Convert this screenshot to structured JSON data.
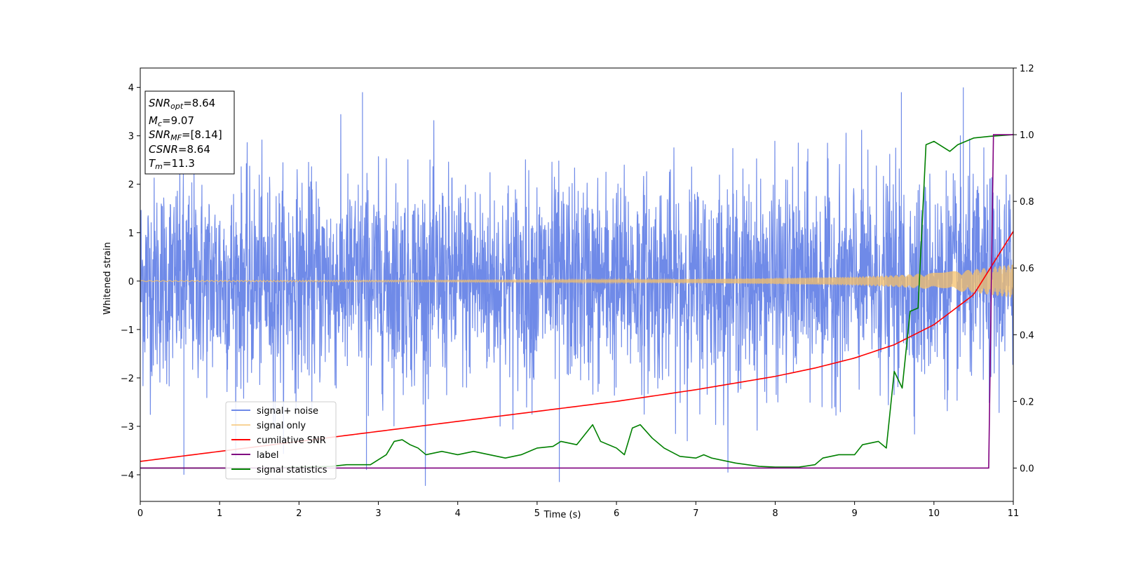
{
  "chart_data": {
    "type": "line",
    "xlabel": "Time (s)",
    "ylabel": "Whitened strain",
    "xlim": [
      0,
      11
    ],
    "ylim_left": [
      -4.55,
      4.4
    ],
    "ylim_right": [
      -0.1,
      1.2
    ],
    "x_ticks": [
      "0",
      "1",
      "2",
      "3",
      "4",
      "5",
      "6",
      "7",
      "8",
      "9",
      "10",
      "11"
    ],
    "y_left_ticks": [
      "−4",
      "−3",
      "−2",
      "−1",
      "0",
      "1",
      "2",
      "3",
      "4"
    ],
    "y_right_ticks": [
      "0.0",
      "0.2",
      "0.4",
      "0.6",
      "0.8",
      "1.0",
      "1.2"
    ],
    "legend_position": "lower-left",
    "annotation": {
      "lines": [
        {
          "base": "SNR",
          "sub": "opt",
          "rest": "=8.64"
        },
        {
          "base": "M",
          "sub": "c",
          "rest": "=9.07"
        },
        {
          "base": "SNR",
          "sub": "MF",
          "rest": "=[8.14]"
        },
        {
          "base": "CSNR",
          "sub": "",
          "rest": "=8.64"
        },
        {
          "base": "T",
          "sub": "m",
          "rest": "=11.3"
        }
      ]
    },
    "series": [
      {
        "name": "signal+ noise",
        "axis": "left",
        "color": "#6f8ae8",
        "description_values": "white noise, approx. +/-2.3 band with peaks to about +/-4, t from 0 to 11 s",
        "amplitude_envelope": {
          "x": [
            0,
            11
          ],
          "y": [
            2.3,
            2.3
          ]
        },
        "extremes": [
          [
            0.55,
            -4.0
          ],
          [
            1.7,
            -3.0
          ],
          [
            2.85,
            -3.9
          ],
          [
            5.28,
            -4.15
          ],
          [
            10.37,
            4.0
          ],
          [
            9.59,
            3.9
          ],
          [
            2.8,
            3.9
          ]
        ]
      },
      {
        "name": "signal only",
        "axis": "left",
        "color": "#f5c06a",
        "amplitude_envelope": {
          "x": [
            0,
            2,
            4,
            6,
            7,
            8,
            9,
            9.5,
            10,
            10.5,
            11
          ],
          "y": [
            0.01,
            0.015,
            0.02,
            0.03,
            0.04,
            0.06,
            0.09,
            0.12,
            0.17,
            0.24,
            0.35
          ]
        }
      },
      {
        "name": "cumilative SNR",
        "axis": "right",
        "color": "#ff0000",
        "x": [
          0,
          1,
          2,
          3,
          4,
          5,
          6,
          7,
          8,
          8.5,
          9,
          9.5,
          10,
          10.5,
          11
        ],
        "y": [
          0.02,
          0.05,
          0.08,
          0.11,
          0.14,
          0.17,
          0.2,
          0.235,
          0.275,
          0.3,
          0.33,
          0.37,
          0.43,
          0.52,
          0.71
        ]
      },
      {
        "name": "label",
        "axis": "right",
        "color": "#800080",
        "x": [
          0,
          10.69,
          10.75,
          11
        ],
        "y": [
          0.0,
          0.0,
          1.0,
          1.0
        ]
      },
      {
        "name": "signal statistics",
        "axis": "right",
        "color": "#008000",
        "x": [
          0,
          1.5,
          2.4,
          2.6,
          2.9,
          3.1,
          3.2,
          3.3,
          3.4,
          3.5,
          3.6,
          3.8,
          4.0,
          4.2,
          4.4,
          4.6,
          4.8,
          5.0,
          5.2,
          5.3,
          5.5,
          5.7,
          5.8,
          6.0,
          6.1,
          6.2,
          6.3,
          6.45,
          6.6,
          6.8,
          7.0,
          7.1,
          7.2,
          7.5,
          7.8,
          8.0,
          8.3,
          8.5,
          8.6,
          8.7,
          8.8,
          9.0,
          9.1,
          9.3,
          9.4,
          9.5,
          9.6,
          9.7,
          9.8,
          9.9,
          10.0,
          10.2,
          10.3,
          10.5,
          10.7,
          11
        ],
        "y": [
          0.0,
          0.0,
          0.005,
          0.01,
          0.01,
          0.04,
          0.08,
          0.085,
          0.07,
          0.06,
          0.04,
          0.05,
          0.04,
          0.05,
          0.04,
          0.03,
          0.04,
          0.06,
          0.065,
          0.08,
          0.07,
          0.13,
          0.08,
          0.06,
          0.04,
          0.12,
          0.13,
          0.09,
          0.06,
          0.035,
          0.03,
          0.04,
          0.03,
          0.015,
          0.005,
          0.003,
          0.003,
          0.01,
          0.03,
          0.035,
          0.04,
          0.04,
          0.07,
          0.08,
          0.06,
          0.29,
          0.24,
          0.47,
          0.48,
          0.97,
          0.98,
          0.95,
          0.97,
          0.99,
          0.995,
          1.0
        ]
      }
    ]
  }
}
